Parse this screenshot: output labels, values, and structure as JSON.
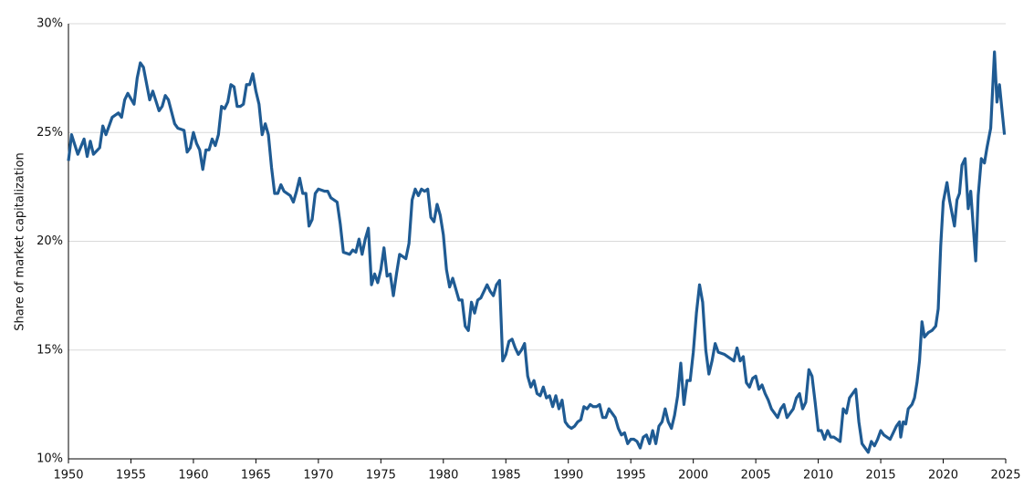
{
  "chart_data": {
    "type": "line",
    "y_label": "Share of market capitalization",
    "color": "#1f5b93",
    "grid": true,
    "xlim": [
      1950,
      2025
    ],
    "xticks": [
      1950,
      1955,
      1960,
      1965,
      1970,
      1975,
      1980,
      1985,
      1990,
      1995,
      2000,
      2005,
      2010,
      2015,
      2020,
      2025
    ],
    "ylim": [
      10,
      30
    ],
    "yticks": [
      {
        "value": 10,
        "label": "10%"
      },
      {
        "value": 15,
        "label": "15%"
      },
      {
        "value": 20,
        "label": "20%"
      },
      {
        "value": 25,
        "label": "25%"
      },
      {
        "value": 30,
        "label": "30%"
      }
    ],
    "x": [
      1950,
      1950.25,
      1950.75,
      1951.25,
      1951.5,
      1951.75,
      1952,
      1952.5,
      1952.75,
      1953,
      1953.5,
      1954,
      1954.25,
      1954.5,
      1954.75,
      1955.25,
      1955.5,
      1955.75,
      1956,
      1956.5,
      1956.75,
      1957.25,
      1957.5,
      1957.75,
      1958,
      1958.5,
      1958.75,
      1959.25,
      1959.5,
      1959.75,
      1960,
      1960.25,
      1960.5,
      1960.75,
      1961,
      1961.25,
      1961.5,
      1961.75,
      1962,
      1962.25,
      1962.5,
      1962.75,
      1963,
      1963.25,
      1963.5,
      1963.75,
      1964,
      1964.25,
      1964.5,
      1964.75,
      1965,
      1965.25,
      1965.5,
      1965.75,
      1966,
      1966.25,
      1966.5,
      1966.75,
      1967,
      1967.25,
      1967.5,
      1967.75,
      1968,
      1968.25,
      1968.5,
      1968.75,
      1969,
      1969.25,
      1969.5,
      1969.75,
      1970,
      1970.5,
      1970.75,
      1971,
      1971.5,
      1971.75,
      1972,
      1972.5,
      1972.75,
      1973,
      1973.25,
      1973.5,
      1973.75,
      1974,
      1974.25,
      1974.5,
      1974.75,
      1975,
      1975.25,
      1975.5,
      1975.75,
      1976,
      1976.25,
      1976.5,
      1977,
      1977.25,
      1977.5,
      1977.75,
      1978,
      1978.25,
      1978.5,
      1978.75,
      1979,
      1979.25,
      1979.5,
      1979.75,
      1980,
      1980.25,
      1980.5,
      1980.75,
      1981,
      1981.25,
      1981.5,
      1981.75,
      1982,
      1982.25,
      1982.5,
      1982.75,
      1983,
      1983.25,
      1983.5,
      1983.75,
      1984,
      1984.25,
      1984.5,
      1984.75,
      1985,
      1985.25,
      1985.5,
      1985.75,
      1986,
      1986.25,
      1986.5,
      1986.75,
      1987,
      1987.25,
      1987.5,
      1987.75,
      1988,
      1988.25,
      1988.5,
      1988.75,
      1989,
      1989.25,
      1989.5,
      1989.75,
      1990,
      1990.25,
      1990.5,
      1990.75,
      1991,
      1991.25,
      1991.5,
      1991.75,
      1992,
      1992.25,
      1992.5,
      1992.75,
      1993,
      1993.25,
      1993.5,
      1993.75,
      1994,
      1994.25,
      1994.5,
      1994.75,
      1995,
      1995.25,
      1995.5,
      1995.75,
      1996,
      1996.25,
      1996.5,
      1996.75,
      1997,
      1997.25,
      1997.5,
      1997.75,
      1998,
      1998.25,
      1998.5,
      1998.75,
      1999,
      1999.25,
      1999.5,
      1999.75,
      2000,
      2000.25,
      2000.5,
      2000.75,
      2001,
      2001.25,
      2001.5,
      2001.75,
      2002,
      2002.5,
      2003,
      2003.25,
      2003.5,
      2003.75,
      2004,
      2004.25,
      2004.5,
      2004.75,
      2005,
      2005.25,
      2005.5,
      2005.75,
      2006,
      2006.25,
      2006.5,
      2006.75,
      2007,
      2007.25,
      2007.5,
      2007.75,
      2008,
      2008.25,
      2008.5,
      2008.75,
      2009,
      2009.25,
      2009.5,
      2009.75,
      2010,
      2010.25,
      2010.5,
      2010.75,
      2011,
      2011.25,
      2011.5,
      2011.75,
      2012,
      2012.25,
      2012.5,
      2012.75,
      2013,
      2013.25,
      2013.5,
      2013.75,
      2014,
      2014.25,
      2014.5,
      2014.75,
      2015,
      2015.25,
      2015.5,
      2015.75,
      2016,
      2016.25,
      2016.5,
      2016.6,
      2016.8,
      2017,
      2017.2,
      2017.5,
      2017.7,
      2017.9,
      2018.1,
      2018.3,
      2018.5,
      2018.8,
      2019.1,
      2019.4,
      2019.6,
      2019.8,
      2020,
      2020.3,
      2020.5,
      2020.9,
      2021.1,
      2021.3,
      2021.5,
      2021.75,
      2022,
      2022.2,
      2022.6,
      2022.8,
      2023.05,
      2023.3,
      2023.5,
      2023.8,
      2024.1,
      2024.3,
      2024.5,
      2024.9
    ],
    "values": [
      23.7,
      24.9,
      24.0,
      24.7,
      23.9,
      24.6,
      24.0,
      24.3,
      25.3,
      24.9,
      25.7,
      25.9,
      25.7,
      26.5,
      26.8,
      26.3,
      27.5,
      28.2,
      28.0,
      26.5,
      26.9,
      26.0,
      26.2,
      26.7,
      26.5,
      25.4,
      25.2,
      25.1,
      24.1,
      24.3,
      25.0,
      24.5,
      24.2,
      23.3,
      24.2,
      24.2,
      24.7,
      24.4,
      24.9,
      26.2,
      26.1,
      26.4,
      27.2,
      27.1,
      26.2,
      26.2,
      26.3,
      27.2,
      27.2,
      27.7,
      26.9,
      26.3,
      24.9,
      25.4,
      24.9,
      23.4,
      22.2,
      22.2,
      22.6,
      22.3,
      22.2,
      22.1,
      21.8,
      22.3,
      22.9,
      22.2,
      22.2,
      20.7,
      21.0,
      22.2,
      22.4,
      22.3,
      22.3,
      22.0,
      21.8,
      20.8,
      19.5,
      19.4,
      19.6,
      19.5,
      20.1,
      19.4,
      20.1,
      20.6,
      18.0,
      18.5,
      18.1,
      18.7,
      19.7,
      18.4,
      18.5,
      17.5,
      18.5,
      19.4,
      19.2,
      19.9,
      21.9,
      22.4,
      22.1,
      22.4,
      22.3,
      22.4,
      21.1,
      20.9,
      21.7,
      21.2,
      20.3,
      18.7,
      17.9,
      18.3,
      17.8,
      17.3,
      17.3,
      16.1,
      15.9,
      17.2,
      16.7,
      17.3,
      17.4,
      17.7,
      18.0,
      17.7,
      17.5,
      18.0,
      18.2,
      14.5,
      14.8,
      15.4,
      15.5,
      15.1,
      14.8,
      15.0,
      15.3,
      13.8,
      13.3,
      13.6,
      13.0,
      12.9,
      13.3,
      12.8,
      12.9,
      12.4,
      12.9,
      12.3,
      12.7,
      11.7,
      11.5,
      11.4,
      11.5,
      11.7,
      11.8,
      12.4,
      12.3,
      12.5,
      12.4,
      12.4,
      12.5,
      11.9,
      11.9,
      12.3,
      12.1,
      11.9,
      11.4,
      11.1,
      11.2,
      10.7,
      10.9,
      10.9,
      10.8,
      10.5,
      11.0,
      11.1,
      10.7,
      11.3,
      10.7,
      11.5,
      11.7,
      12.3,
      11.7,
      11.4,
      12.0,
      12.9,
      14.4,
      12.5,
      13.6,
      13.6,
      14.9,
      16.7,
      18.0,
      17.2,
      15.0,
      13.9,
      14.5,
      15.3,
      14.9,
      14.8,
      14.6,
      14.5,
      15.1,
      14.5,
      14.7,
      13.5,
      13.3,
      13.7,
      13.8,
      13.2,
      13.4,
      13.0,
      12.7,
      12.3,
      12.1,
      11.9,
      12.3,
      12.5,
      11.9,
      12.1,
      12.3,
      12.8,
      13.0,
      12.3,
      12.6,
      14.1,
      13.8,
      12.6,
      11.3,
      11.3,
      10.9,
      11.3,
      11.0,
      11.0,
      10.9,
      10.8,
      12.3,
      12.1,
      12.8,
      13.0,
      13.2,
      11.7,
      10.7,
      10.5,
      10.3,
      10.8,
      10.6,
      10.9,
      11.3,
      11.1,
      11.0,
      10.9,
      11.2,
      11.5,
      11.7,
      11.0,
      11.7,
      11.6,
      12.3,
      12.5,
      12.8,
      13.5,
      14.5,
      16.3,
      15.6,
      15.8,
      15.9,
      16.1,
      16.9,
      19.8,
      21.8,
      22.7,
      21.9,
      20.7,
      21.9,
      22.2,
      23.5,
      23.8,
      21.5,
      22.3,
      19.1,
      22.1,
      23.8,
      23.6,
      24.3,
      25.2,
      28.7,
      26.4,
      27.2,
      24.9
    ]
  }
}
